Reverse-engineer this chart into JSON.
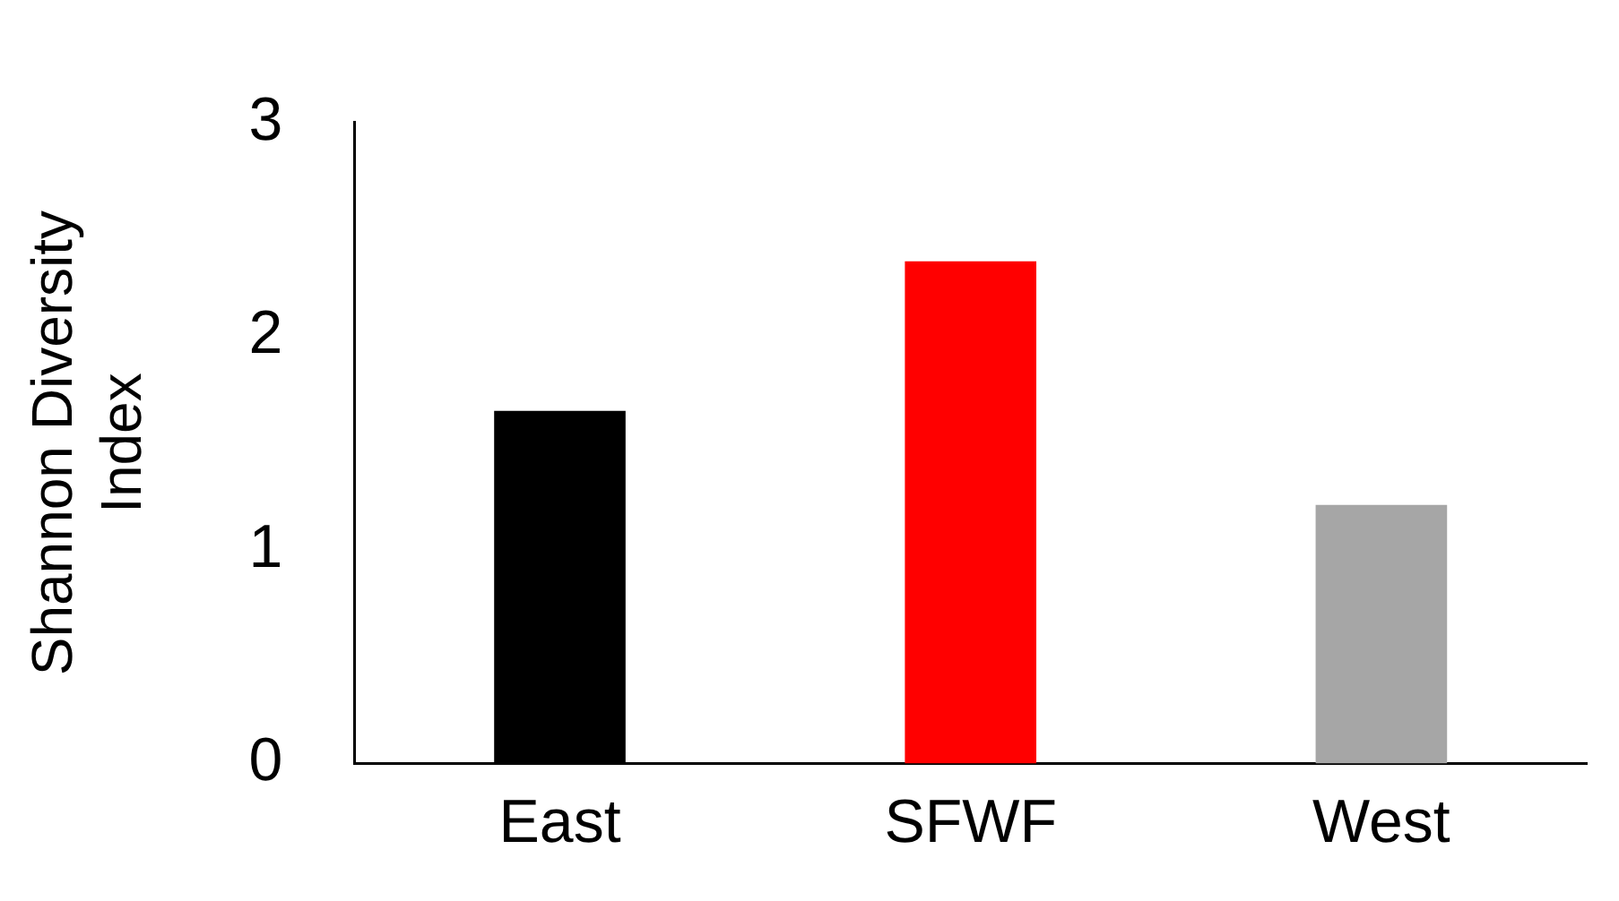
{
  "chart_data": {
    "type": "bar",
    "ylabel": "Shannon Diversity Index",
    "categories": [
      "East",
      "SFWF",
      "West"
    ],
    "values": [
      1.65,
      2.35,
      1.21
    ],
    "colors": [
      "#000000",
      "#ff0000",
      "#a6a6a6"
    ],
    "ylim": [
      0,
      3
    ],
    "yticks": [
      0,
      1,
      2,
      3
    ],
    "grid": false,
    "legend": false
  }
}
